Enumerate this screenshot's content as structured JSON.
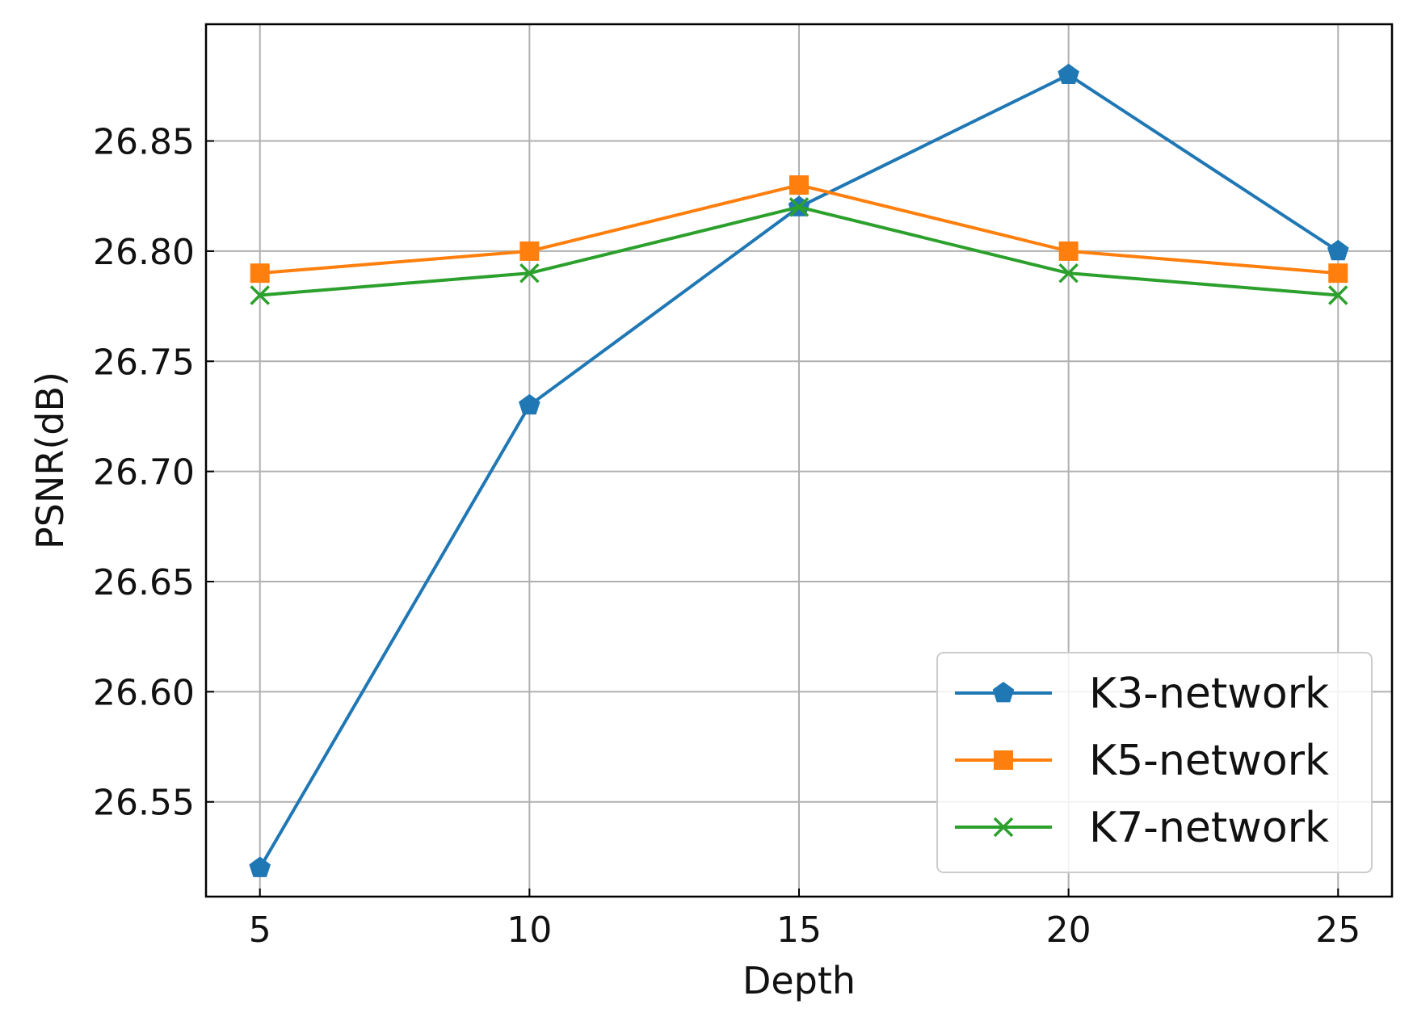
{
  "chart_data": {
    "type": "line",
    "title": "",
    "xlabel": "Depth",
    "ylabel": "PSNR(dB)",
    "x": [
      5,
      10,
      15,
      20,
      25
    ],
    "xticks": [
      "5",
      "10",
      "15",
      "20",
      "25"
    ],
    "yticks": [
      "26.55",
      "26.60",
      "26.65",
      "26.70",
      "26.75",
      "26.80",
      "26.85"
    ],
    "ytick_values": [
      26.55,
      26.6,
      26.65,
      26.7,
      26.75,
      26.8,
      26.85
    ],
    "xlim": [
      4,
      26
    ],
    "ylim": [
      26.507,
      26.903
    ],
    "grid": true,
    "legend_position": "lower-right",
    "series": [
      {
        "name": "K3-network",
        "color": "#1f77b4",
        "marker": "pentagon",
        "values": [
          26.52,
          26.73,
          26.82,
          26.88,
          26.8
        ]
      },
      {
        "name": "K5-network",
        "color": "#ff7f0e",
        "marker": "square",
        "values": [
          26.79,
          26.8,
          26.83,
          26.8,
          26.79
        ]
      },
      {
        "name": "K7-network",
        "color": "#2ca02c",
        "marker": "x",
        "values": [
          26.78,
          26.79,
          26.82,
          26.79,
          26.78
        ]
      }
    ]
  }
}
